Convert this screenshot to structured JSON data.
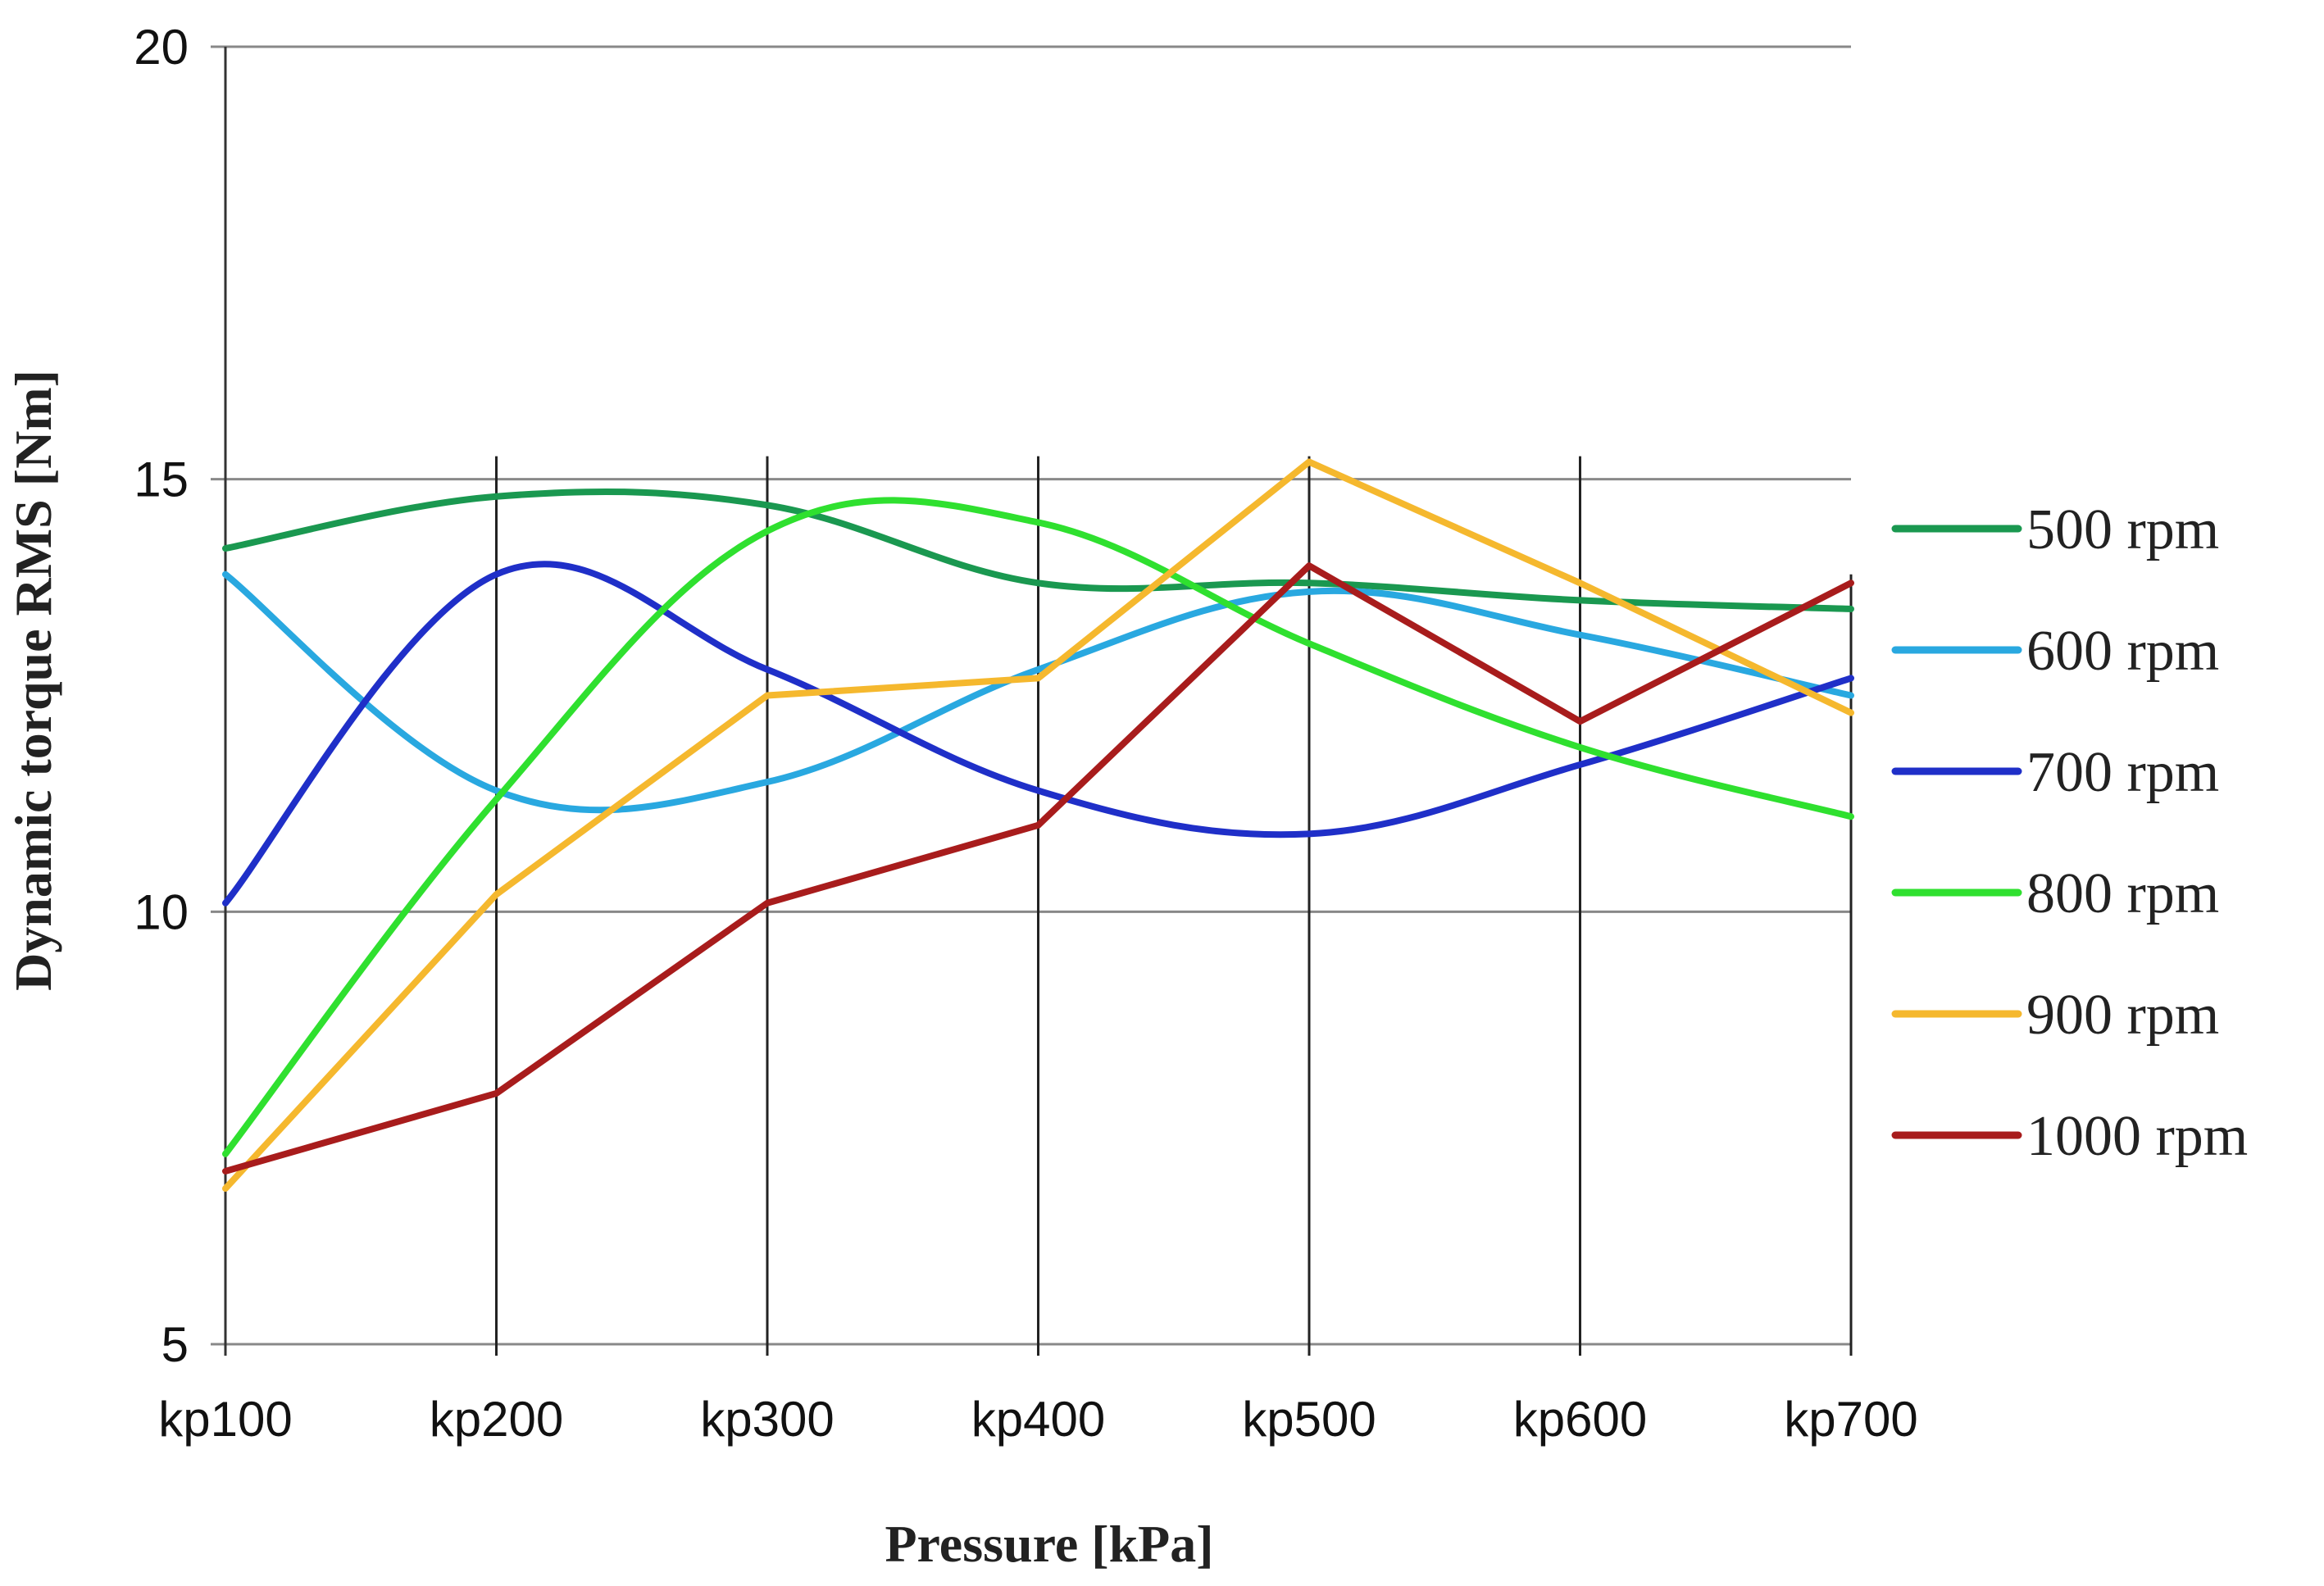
{
  "chart_data": {
    "type": "line",
    "title": "",
    "xlabel": "Pressure [kPa]",
    "ylabel": "Dynamic torque RMS [Nm]",
    "categories": [
      "kp100",
      "kp200",
      "kp300",
      "kp400",
      "kp500",
      "kp600",
      "kp700"
    ],
    "ylim": [
      5,
      20
    ],
    "yticks": [
      5,
      10,
      15,
      20
    ],
    "grid": "horizontal and vertical",
    "legend_position": "right",
    "series": [
      {
        "name": "500  rpm",
        "color": "#1a9850",
        "smooth": true,
        "values": [
          14.2,
          14.8,
          14.7,
          13.8,
          13.8,
          13.6,
          13.5
        ]
      },
      {
        "name": "600  rpm",
        "color": "#29a8e0",
        "smooth": true,
        "values": [
          13.9,
          11.4,
          11.5,
          12.8,
          13.7,
          13.2,
          12.5
        ]
      },
      {
        "name": "700  rpm",
        "color": "#1f2fc8",
        "smooth": true,
        "values": [
          10.1,
          13.9,
          12.8,
          11.4,
          10.9,
          11.7,
          12.7
        ]
      },
      {
        "name": "800  rpm",
        "color": "#2fe02f",
        "smooth": true,
        "values": [
          7.2,
          11.3,
          14.4,
          14.5,
          13.1,
          11.9,
          11.1
        ]
      },
      {
        "name": "900  rpm",
        "color": "#f5b82e",
        "smooth": false,
        "values": [
          6.8,
          10.2,
          12.5,
          12.7,
          15.2,
          13.8,
          12.3
        ]
      },
      {
        "name": "1000  rpm",
        "color": "#a81c1c",
        "smooth": false,
        "values": [
          7.0,
          7.9,
          10.1,
          11.0,
          14.0,
          12.2,
          13.8
        ]
      }
    ]
  }
}
